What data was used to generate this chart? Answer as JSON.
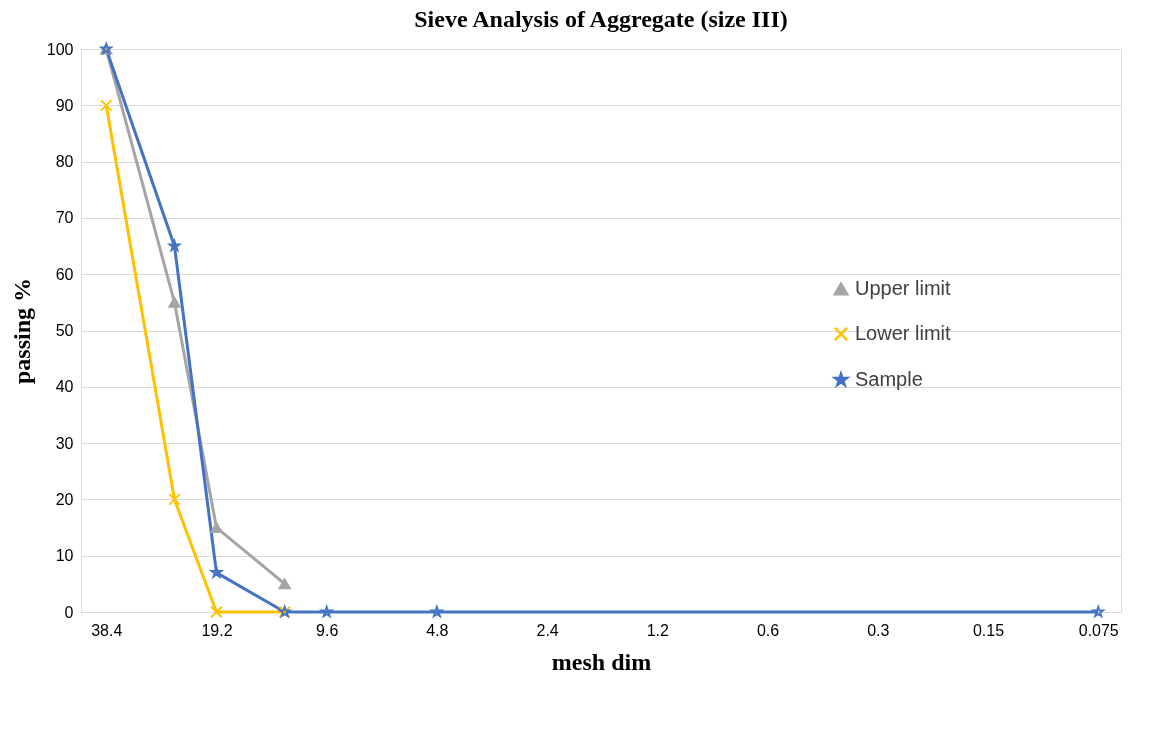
{
  "chart_data": {
    "type": "line",
    "title": "Sieve Analysis of Aggregate  (size III)",
    "xlabel": "mesh dim",
    "ylabel": "passing %",
    "log": "x",
    "xlim": [
      45,
      0.065
    ],
    "xticks": [
      38.4,
      19.2,
      9.6,
      4.8,
      2.4,
      1.2,
      0.6,
      0.3,
      0.15,
      0.075
    ],
    "ylim": [
      0,
      100
    ],
    "yticks": [
      0,
      10,
      20,
      30,
      40,
      50,
      60,
      70,
      80,
      90,
      100
    ],
    "grid": "y",
    "legend": "right",
    "series": [
      {
        "name": "Upper limit",
        "color": "#a5a5a5",
        "marker": "triangle",
        "x": [
          38.4,
          25,
          19.2,
          12.5
        ],
        "values": [
          100,
          55,
          15,
          5
        ]
      },
      {
        "name": "Lower limit",
        "color": "#ffc000",
        "marker": "cross",
        "x": [
          38.4,
          25,
          19.2,
          12.5
        ],
        "values": [
          90,
          20,
          0,
          0
        ]
      },
      {
        "name": "Sample",
        "color": "#4472c4",
        "marker": "star",
        "x": [
          38.4,
          25,
          19.2,
          12.5,
          9.6,
          4.8,
          0.075
        ],
        "values": [
          100,
          65,
          7,
          0,
          0,
          0,
          0
        ]
      }
    ]
  }
}
